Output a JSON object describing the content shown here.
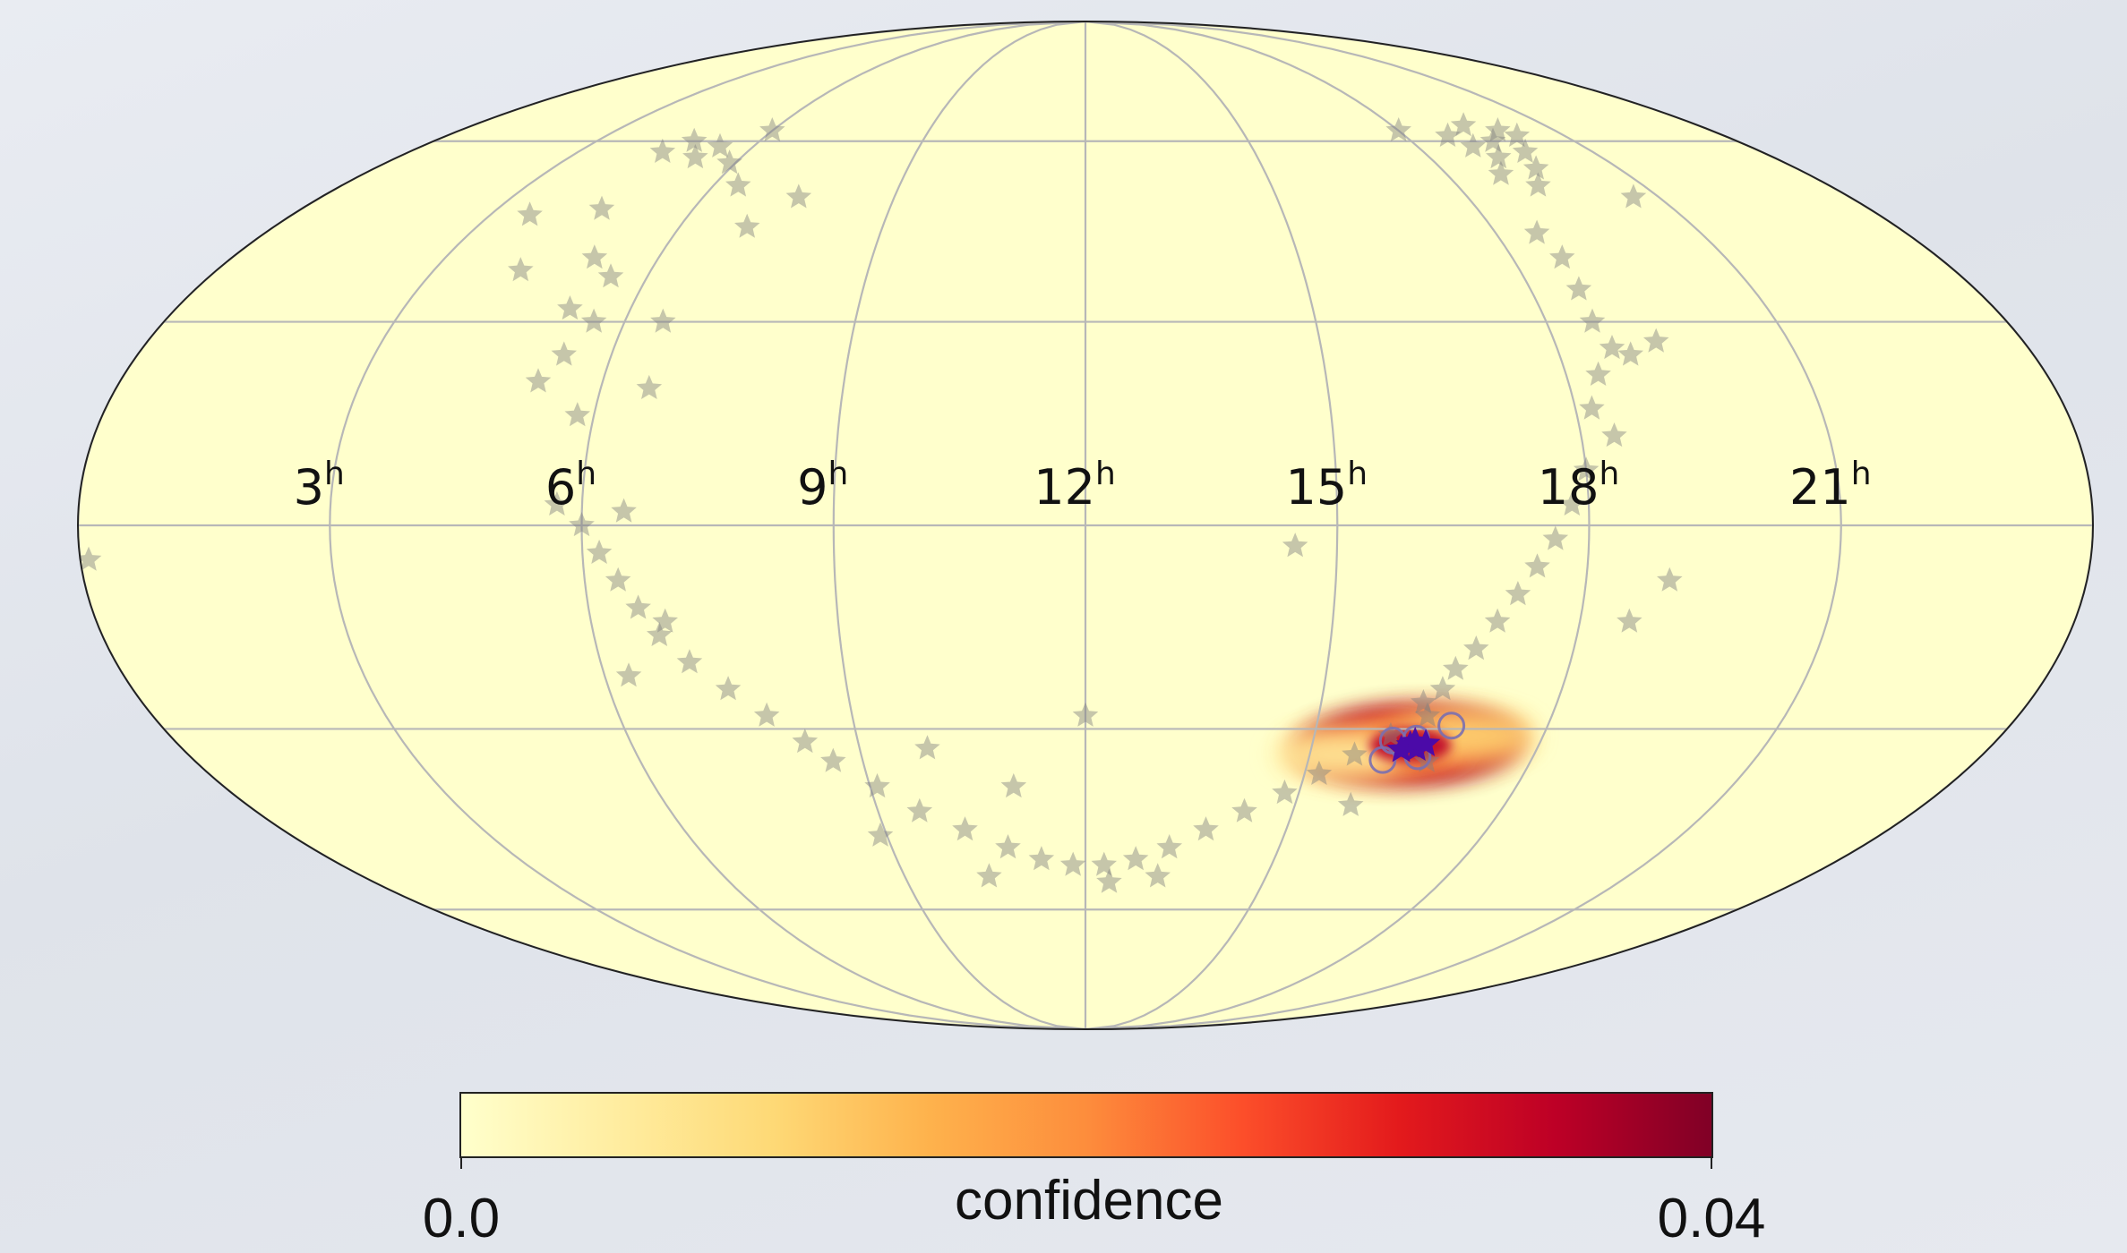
{
  "chart_data": {
    "type": "scatter",
    "projection": "mollweide",
    "ra_labels": [
      {
        "hours": 21,
        "text": "21",
        "sup": "h"
      },
      {
        "hours": 18,
        "text": "18",
        "sup": "h"
      },
      {
        "hours": 15,
        "text": "15",
        "sup": "h"
      },
      {
        "hours": 12,
        "text": "12",
        "sup": "h"
      },
      {
        "hours": 9,
        "text": "9",
        "sup": "h"
      },
      {
        "hours": 6,
        "text": "6",
        "sup": "h"
      },
      {
        "hours": 3,
        "text": "3",
        "sup": "h"
      }
    ],
    "graticule": {
      "ra_hours_step": 3,
      "dec_deg": [
        -60,
        -30,
        0,
        30,
        60
      ],
      "color": "#b7b7b7"
    },
    "background_color": "#ffffcc",
    "colorbar": {
      "label": "confidence",
      "min_label": "0.0",
      "max_label": "0.04",
      "range": [
        0.0,
        0.04
      ],
      "colormap": [
        "#ffffcc",
        "#ffeda0",
        "#fed976",
        "#feb24c",
        "#fd8d3c",
        "#fc4e2a",
        "#e31a1c",
        "#bd0026",
        "#800026"
      ]
    },
    "star_color": "#808080",
    "star_points": [
      [
        19.5,
        60
      ],
      [
        19.8,
        58
      ],
      [
        19.2,
        57
      ],
      [
        19.9,
        62
      ],
      [
        19.4,
        63
      ],
      [
        19.0,
        59
      ],
      [
        19.6,
        55
      ],
      [
        20.1,
        61
      ],
      [
        18.8,
        61
      ],
      [
        18.0,
        62
      ],
      [
        20.6,
        50
      ],
      [
        18.9,
        54
      ],
      [
        19.3,
        52
      ],
      [
        18.6,
        44
      ],
      [
        18.7,
        40
      ],
      [
        18.65,
        35
      ],
      [
        18.6,
        30
      ],
      [
        18.7,
        26
      ],
      [
        18.4,
        22
      ],
      [
        18.9,
        25
      ],
      [
        19.3,
        27
      ],
      [
        18.2,
        17
      ],
      [
        18.4,
        13
      ],
      [
        18.0,
        8
      ],
      [
        17.8,
        3
      ],
      [
        17.6,
        -2
      ],
      [
        17.4,
        -6
      ],
      [
        17.2,
        -10
      ],
      [
        17.0,
        -14
      ],
      [
        16.8,
        -18
      ],
      [
        16.6,
        -21
      ],
      [
        16.5,
        -24
      ],
      [
        16.3,
        -26
      ],
      [
        19.0,
        -8
      ],
      [
        18.6,
        -14
      ],
      [
        14.5,
        -3
      ],
      [
        16.4,
        -28
      ],
      [
        16.0,
        -31
      ],
      [
        15.6,
        -34
      ],
      [
        15.2,
        -37
      ],
      [
        14.8,
        -40
      ],
      [
        14.3,
        -43
      ],
      [
        13.8,
        -46
      ],
      [
        13.3,
        -49
      ],
      [
        12.8,
        -51
      ],
      [
        12.3,
        -52
      ],
      [
        11.8,
        -52
      ],
      [
        11.3,
        -51
      ],
      [
        10.8,
        -49
      ],
      [
        12.4,
        -55
      ],
      [
        13.2,
        -54
      ],
      [
        16.6,
        -35
      ],
      [
        15.8,
        -42
      ],
      [
        12.0,
        -28
      ],
      [
        10.2,
        -46
      ],
      [
        9.6,
        -43
      ],
      [
        9.1,
        -39
      ],
      [
        8.6,
        -35
      ],
      [
        8.3,
        -32
      ],
      [
        7.9,
        -28
      ],
      [
        7.5,
        -24
      ],
      [
        7.1,
        -20
      ],
      [
        6.8,
        -16
      ],
      [
        6.6,
        -12
      ],
      [
        6.4,
        -8
      ],
      [
        6.2,
        -4
      ],
      [
        6.0,
        0
      ],
      [
        5.7,
        3
      ],
      [
        6.5,
        2
      ],
      [
        6.9,
        -14
      ],
      [
        6.3,
        -22
      ],
      [
        8.9,
        -47
      ],
      [
        10.4,
        -54
      ],
      [
        9.9,
        -33
      ],
      [
        11.0,
        -39
      ],
      [
        5.2,
        21
      ],
      [
        5.4,
        25
      ],
      [
        5.6,
        30
      ],
      [
        5.2,
        32
      ],
      [
        5.5,
        37
      ],
      [
        5.1,
        40
      ],
      [
        5.8,
        16
      ],
      [
        6.4,
        52
      ],
      [
        5.9,
        56
      ],
      [
        5.4,
        59
      ],
      [
        4.8,
        60
      ],
      [
        5.2,
        57
      ],
      [
        4.5,
        58
      ],
      [
        6.0,
        62
      ],
      [
        7.0,
        45
      ],
      [
        7.5,
        50
      ],
      [
        4.6,
        48
      ],
      [
        3.6,
        47
      ],
      [
        4.2,
        38
      ],
      [
        6.5,
        30
      ],
      [
        0.1,
        -5
      ],
      [
        6.6,
        20
      ]
    ],
    "heat_blobs": [
      {
        "ra": 16.25,
        "dec": -32.5,
        "value": 0.04
      },
      {
        "ra": 16.45,
        "dec": -32,
        "value": 0.035
      },
      {
        "ra": 16.0,
        "dec": -33,
        "value": 0.03
      },
      {
        "ra": 16.7,
        "dec": -31.5,
        "value": 0.02
      },
      {
        "ra": 15.7,
        "dec": -33.5,
        "value": 0.015
      },
      {
        "ra": 16.95,
        "dec": -31,
        "value": 0.008
      },
      {
        "ra": 15.4,
        "dec": -34,
        "value": 0.006
      }
    ],
    "circle_markers": [
      [
        16.75,
        -29.5
      ],
      [
        16.35,
        -31.5
      ],
      [
        16.05,
        -31.8
      ],
      [
        16.45,
        -34.2
      ],
      [
        16.0,
        -34.8
      ]
    ],
    "core_points": [
      [
        16.3,
        -32.5
      ],
      [
        16.4,
        -33
      ],
      [
        16.2,
        -33.2
      ],
      [
        16.5,
        -32.3
      ],
      [
        16.35,
        -32
      ]
    ]
  }
}
